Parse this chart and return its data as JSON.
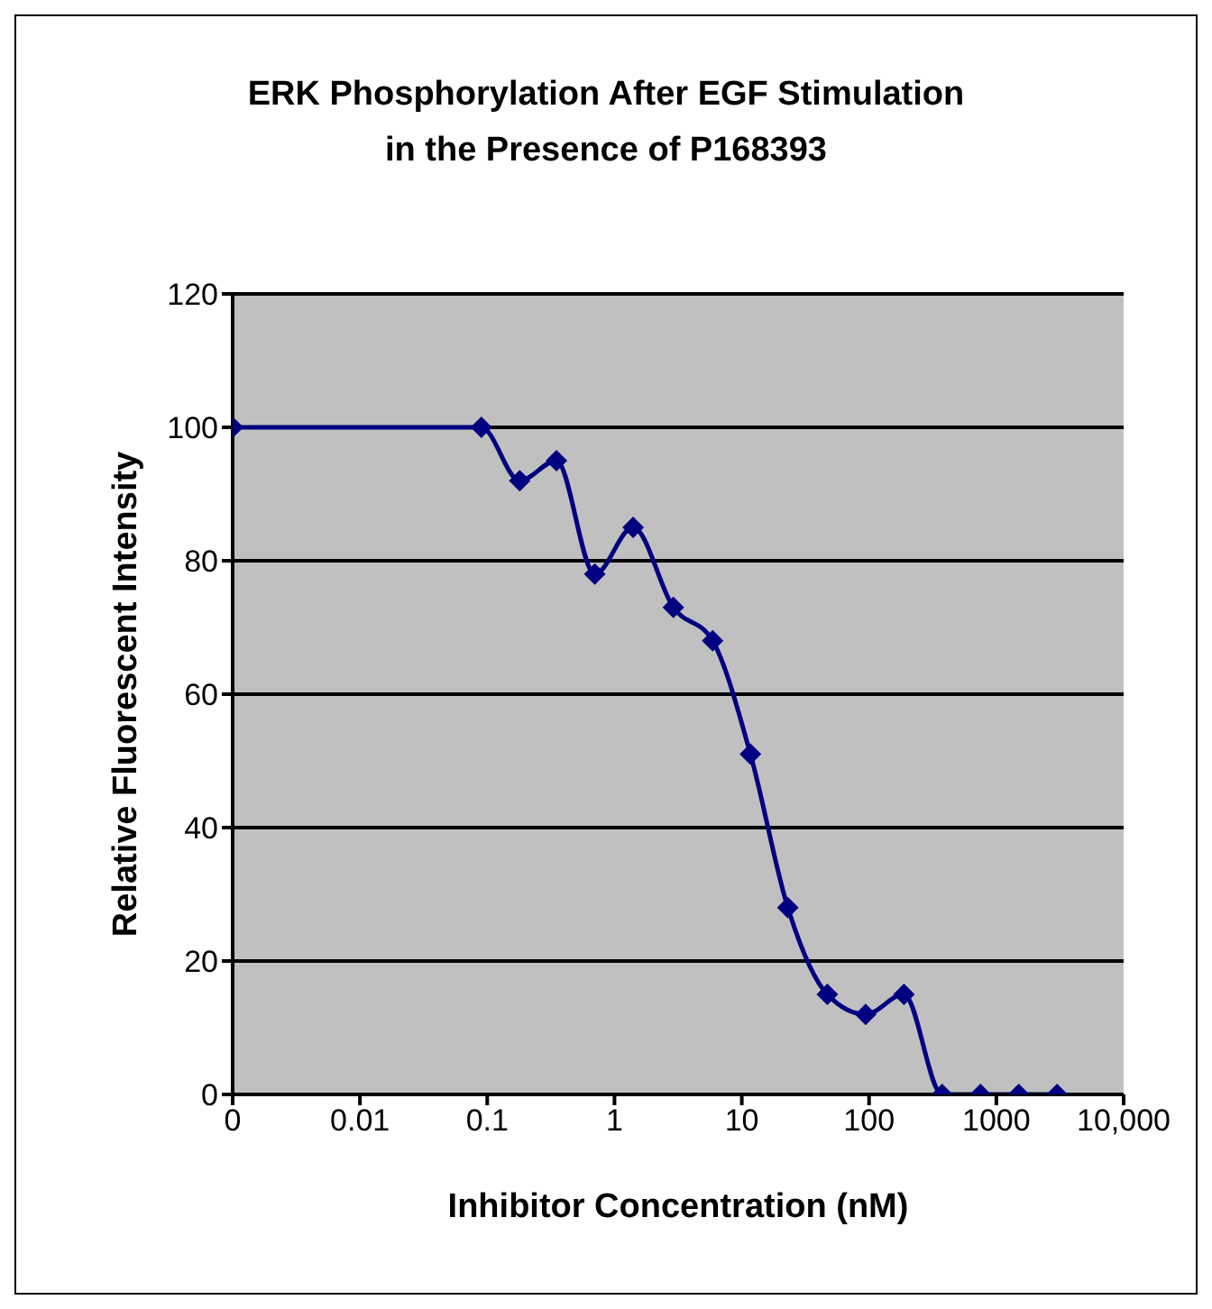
{
  "chart_data": {
    "type": "line",
    "title": "ERK Phosphorylation After EGF Stimulation\nin the Presence of P168393",
    "xlabel": "Inhibitor Concentration (nM)",
    "ylabel": "Relative Fluorescent Intensity",
    "x": [
      0.001,
      0.09,
      0.18,
      0.35,
      0.7,
      1.4,
      2.9,
      5.9,
      11.7,
      23,
      47,
      94,
      188,
      375,
      750,
      1500,
      3000
    ],
    "series": [
      {
        "color": "#000080",
        "values": [
          100,
          100,
          92,
          95,
          78,
          85,
          73,
          68,
          51,
          28,
          15,
          12,
          15,
          0,
          0,
          0,
          0
        ]
      }
    ],
    "log": "x",
    "xlim": [
      0.001,
      10000
    ],
    "xticks": [
      {
        "value": 0.001,
        "label": "0"
      },
      0.01,
      0.1,
      1,
      10,
      100,
      1000,
      {
        "value": 10000,
        "label": "10,000"
      }
    ],
    "ylim": [
      0,
      120
    ],
    "yticks": [
      0,
      20,
      40,
      60,
      80,
      100,
      120
    ],
    "grid": "y",
    "marker": "diamond",
    "line_style": "solid",
    "legend": false
  }
}
